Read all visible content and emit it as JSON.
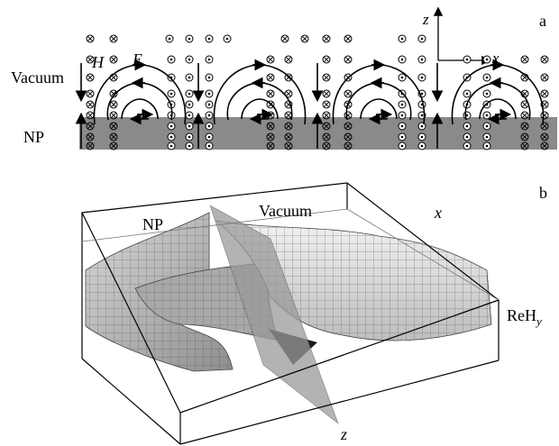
{
  "panel_a": {
    "tag": "a",
    "axis_z": "z",
    "axis_x": "x",
    "label_vacuum": "Vacuum",
    "label_np": "NP",
    "label_h": "H",
    "label_e": "E",
    "colors": {
      "substrate": "#8a8a8a",
      "line": "#000000"
    }
  },
  "panel_b": {
    "tag": "b",
    "label_np": "NP",
    "label_vacuum": "Vacuum",
    "axis_x": "x",
    "axis_z": "z",
    "label_reh": "ReH",
    "label_reh_sub": "y",
    "colors": {
      "surface": "#b8b8b8",
      "mesh": "#444444",
      "plane": "#9a9a9a"
    }
  }
}
